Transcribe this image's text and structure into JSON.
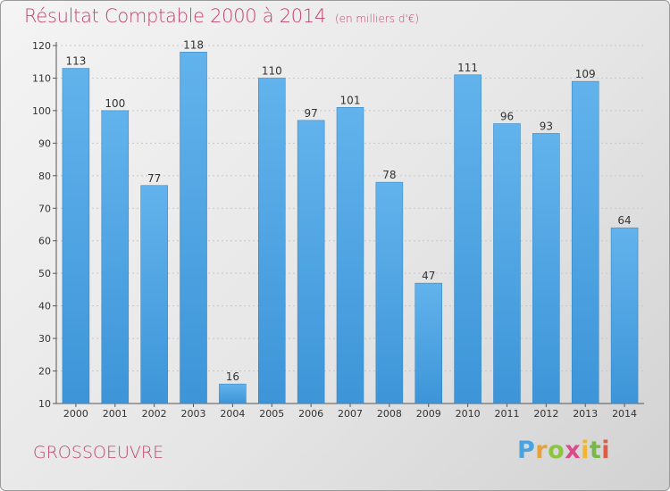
{
  "title": "Résultat Comptable 2000 à 2014",
  "subtitle": "(en milliers d'€)",
  "commune": "GROSSOEUVRE",
  "logo": {
    "letters": [
      "P",
      "r",
      "o",
      "x",
      "i",
      "t",
      "i"
    ],
    "colors": [
      "#4aa3df",
      "#e8a23a",
      "#8cc63f",
      "#d94c8a",
      "#f2b532",
      "#7ab648",
      "#e05a46"
    ]
  },
  "colors": {
    "bar": "#3d95d8",
    "bar_light": "#62b3ec",
    "title": "#c0466e"
  },
  "chart_data": {
    "type": "bar",
    "categories": [
      "2000",
      "2001",
      "2002",
      "2003",
      "2004",
      "2005",
      "2006",
      "2007",
      "2008",
      "2009",
      "2010",
      "2011",
      "2012",
      "2013",
      "2014"
    ],
    "values": [
      113,
      100,
      77,
      118,
      16,
      110,
      97,
      101,
      78,
      47,
      111,
      96,
      93,
      109,
      64
    ],
    "ylim": [
      10,
      120
    ],
    "yticks": [
      10,
      20,
      30,
      40,
      50,
      60,
      70,
      80,
      90,
      100,
      110,
      120
    ],
    "grid": true,
    "data_labels": true
  }
}
